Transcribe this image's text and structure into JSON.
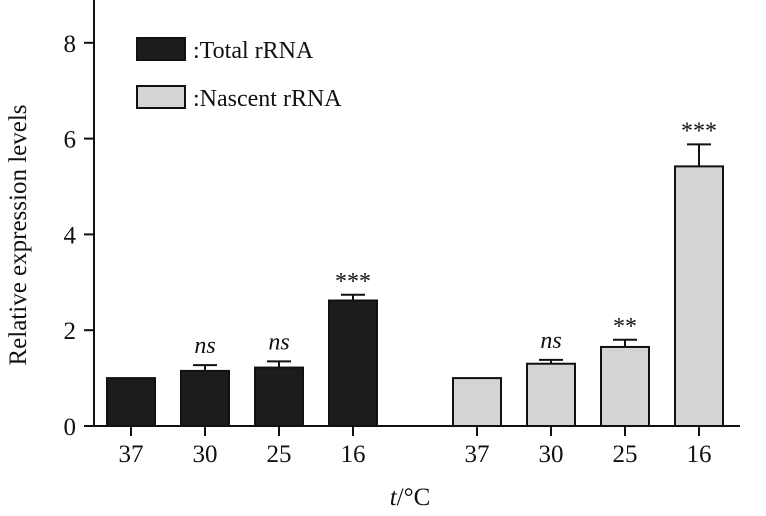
{
  "chart_data": {
    "type": "bar",
    "ylabel": "Relative expression levels",
    "xlabel": {
      "italic": "t",
      "rest": "/°C"
    },
    "ylim": [
      0,
      8
    ],
    "yticks": [
      0,
      2,
      4,
      6,
      8
    ],
    "grid": false,
    "legend_placement": "top-left",
    "groups": [
      {
        "series": "Total rRNA",
        "legend_label": ":Total rRNA",
        "color": "#1c1c1c",
        "categories": [
          "37",
          "30",
          "25",
          "16"
        ],
        "values": [
          1.0,
          1.15,
          1.22,
          2.62
        ],
        "errors": [
          0,
          0.12,
          0.13,
          0.12
        ],
        "annotations": [
          "",
          "ns",
          "ns",
          "***"
        ]
      },
      {
        "series": "Nascent rRNA",
        "legend_label": ":Nascent rRNA",
        "color": "#d4d4d4",
        "categories": [
          "37",
          "30",
          "25",
          "16"
        ],
        "values": [
          1.0,
          1.3,
          1.65,
          5.42
        ],
        "errors": [
          0,
          0.08,
          0.15,
          0.46
        ],
        "annotations": [
          "",
          "ns",
          "**",
          "***"
        ]
      }
    ]
  }
}
